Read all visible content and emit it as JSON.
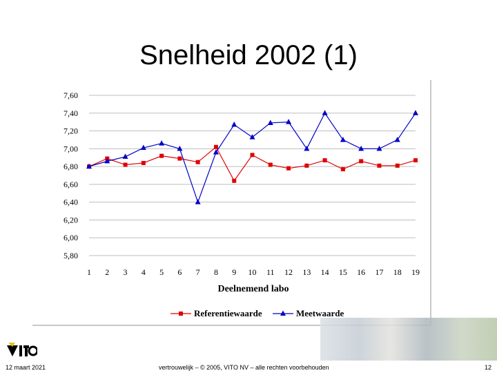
{
  "slide": {
    "title": "Snelheid 2002 (1)",
    "date": "12 maart 2021",
    "confidential": "vertrouwelijk – © 2005, VITO NV – alle rechten voorbehouden",
    "page": "12"
  },
  "chart_data": {
    "type": "line",
    "title": "",
    "xlabel": "Deelnemend labo",
    "ylabel": "",
    "categories": [
      "1",
      "2",
      "3",
      "4",
      "5",
      "6",
      "7",
      "8",
      "9",
      "10",
      "11",
      "12",
      "13",
      "14",
      "15",
      "16",
      "17",
      "18",
      "19"
    ],
    "ylim": [
      5.8,
      7.6
    ],
    "yticks": [
      "5,80",
      "6,00",
      "6,20",
      "6,40",
      "6,60",
      "6,80",
      "7,00",
      "7,20",
      "7,40",
      "7,60"
    ],
    "ytick_values": [
      5.8,
      6.0,
      6.2,
      6.4,
      6.6,
      6.8,
      7.0,
      7.2,
      7.4,
      7.6
    ],
    "grid": true,
    "legend": "bottom",
    "series": [
      {
        "name": "Referentiewaarde",
        "color": "#e00000",
        "marker": "square",
        "values": [
          6.8,
          6.89,
          6.82,
          6.84,
          6.92,
          6.89,
          6.85,
          7.02,
          6.64,
          6.93,
          6.82,
          6.78,
          6.81,
          6.87,
          6.77,
          6.86,
          6.81,
          6.81,
          6.87
        ]
      },
      {
        "name": "Meetwaarde",
        "color": "#0000c8",
        "marker": "triangle",
        "values": [
          6.8,
          6.86,
          6.91,
          7.01,
          7.06,
          7.0,
          6.4,
          6.96,
          7.27,
          7.13,
          7.29,
          7.3,
          7.0,
          7.4,
          7.1,
          7.0,
          7.0,
          7.1,
          7.4
        ]
      }
    ]
  }
}
